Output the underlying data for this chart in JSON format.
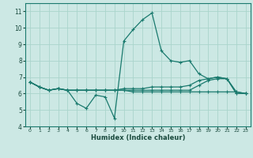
{
  "xlabel": "Humidex (Indice chaleur)",
  "ylabel": "",
  "background_color": "#cce8e4",
  "grid_color": "#aad4cc",
  "line_color": "#1a7a6e",
  "x": [
    0,
    1,
    2,
    3,
    4,
    5,
    6,
    7,
    8,
    9,
    10,
    11,
    12,
    13,
    14,
    15,
    16,
    17,
    18,
    19,
    20,
    21,
    22,
    23
  ],
  "lines": [
    [
      6.7,
      6.4,
      6.2,
      6.3,
      6.2,
      5.4,
      5.1,
      5.9,
      5.8,
      4.5,
      9.2,
      9.9,
      10.5,
      10.9,
      8.6,
      8.0,
      7.9,
      8.0,
      7.2,
      6.9,
      7.0,
      6.9,
      6.0,
      6.0
    ],
    [
      6.7,
      6.4,
      6.2,
      6.3,
      6.2,
      6.2,
      6.2,
      6.2,
      6.2,
      6.2,
      6.3,
      6.3,
      6.3,
      6.4,
      6.4,
      6.4,
      6.4,
      6.5,
      6.8,
      6.9,
      7.0,
      6.9,
      6.0,
      6.0
    ],
    [
      6.7,
      6.4,
      6.2,
      6.3,
      6.2,
      6.2,
      6.2,
      6.2,
      6.2,
      6.2,
      6.2,
      6.2,
      6.2,
      6.2,
      6.2,
      6.2,
      6.2,
      6.2,
      6.5,
      6.8,
      6.9,
      6.9,
      6.1,
      6.0
    ],
    [
      6.7,
      6.4,
      6.2,
      6.3,
      6.2,
      6.2,
      6.2,
      6.2,
      6.2,
      6.2,
      6.2,
      6.1,
      6.1,
      6.1,
      6.1,
      6.1,
      6.1,
      6.1,
      6.1,
      6.1,
      6.1,
      6.1,
      6.1,
      6.0
    ]
  ],
  "ylim": [
    4,
    11.5
  ],
  "xlim": [
    -0.5,
    23.5
  ],
  "yticks": [
    4,
    5,
    6,
    7,
    8,
    9,
    10,
    11
  ],
  "xticks": [
    0,
    1,
    2,
    3,
    4,
    5,
    6,
    7,
    8,
    9,
    10,
    11,
    12,
    13,
    14,
    15,
    16,
    17,
    18,
    19,
    20,
    21,
    22,
    23
  ],
  "xlabel_fontsize": 6,
  "xlabel_fontweight": "bold",
  "tick_fontsize_x": 4.5,
  "tick_fontsize_y": 5.5
}
